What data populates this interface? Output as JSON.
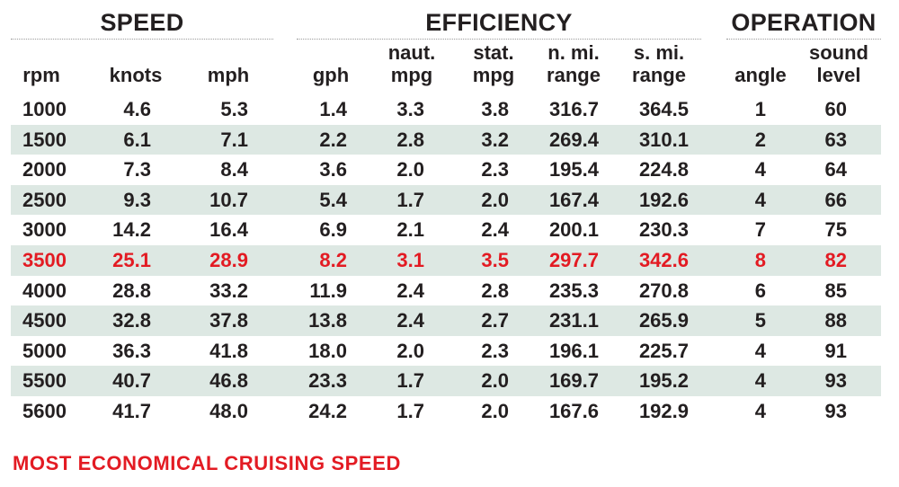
{
  "groups": {
    "speed": "SPEED",
    "efficiency": "EFFICIENCY",
    "operation": "OPERATION"
  },
  "columns": [
    {
      "key": "rpm",
      "line1": "",
      "line2": "rpm"
    },
    {
      "key": "knots",
      "line1": "",
      "line2": "knots"
    },
    {
      "key": "mph",
      "line1": "",
      "line2": "mph"
    },
    {
      "key": "gph",
      "line1": "",
      "line2": "gph"
    },
    {
      "key": "naut_mpg",
      "line1": "naut.",
      "line2": "mpg"
    },
    {
      "key": "stat_mpg",
      "line1": "stat.",
      "line2": "mpg"
    },
    {
      "key": "n_mi_range",
      "line1": "n. mi.",
      "line2": "range"
    },
    {
      "key": "s_mi_range",
      "line1": "s. mi.",
      "line2": "range"
    },
    {
      "key": "angle",
      "line1": "",
      "line2": "angle"
    },
    {
      "key": "sound_level",
      "line1": "sound",
      "line2": "level"
    }
  ],
  "rows": [
    [
      "1000",
      "4.6",
      "5.3",
      "1.4",
      "3.3",
      "3.8",
      "316.7",
      "364.5",
      "1",
      "60"
    ],
    [
      "1500",
      "6.1",
      "7.1",
      "2.2",
      "2.8",
      "3.2",
      "269.4",
      "310.1",
      "2",
      "63"
    ],
    [
      "2000",
      "7.3",
      "8.4",
      "3.6",
      "2.0",
      "2.3",
      "195.4",
      "224.8",
      "4",
      "64"
    ],
    [
      "2500",
      "9.3",
      "10.7",
      "5.4",
      "1.7",
      "2.0",
      "167.4",
      "192.6",
      "4",
      "66"
    ],
    [
      "3000",
      "14.2",
      "16.4",
      "6.9",
      "2.1",
      "2.4",
      "200.1",
      "230.3",
      "7",
      "75"
    ],
    [
      "3500",
      "25.1",
      "28.9",
      "8.2",
      "3.1",
      "3.5",
      "297.7",
      "342.6",
      "8",
      "82"
    ],
    [
      "4000",
      "28.8",
      "33.2",
      "11.9",
      "2.4",
      "2.8",
      "235.3",
      "270.8",
      "6",
      "85"
    ],
    [
      "4500",
      "32.8",
      "37.8",
      "13.8",
      "2.4",
      "2.7",
      "231.1",
      "265.9",
      "5",
      "88"
    ],
    [
      "5000",
      "36.3",
      "41.8",
      "18.0",
      "2.0",
      "2.3",
      "196.1",
      "225.7",
      "4",
      "91"
    ],
    [
      "5500",
      "40.7",
      "46.8",
      "23.3",
      "1.7",
      "2.0",
      "169.7",
      "195.2",
      "4",
      "93"
    ],
    [
      "5600",
      "41.7",
      "48.0",
      "24.2",
      "1.7",
      "2.0",
      "167.6",
      "192.9",
      "4",
      "93"
    ]
  ],
  "highlight_row_index": 5,
  "footnote": "MOST ECONOMICAL CRUISING SPEED",
  "colors": {
    "highlight": "#e31b23",
    "shaded_row": "#dde8e3",
    "text": "#231f20"
  }
}
